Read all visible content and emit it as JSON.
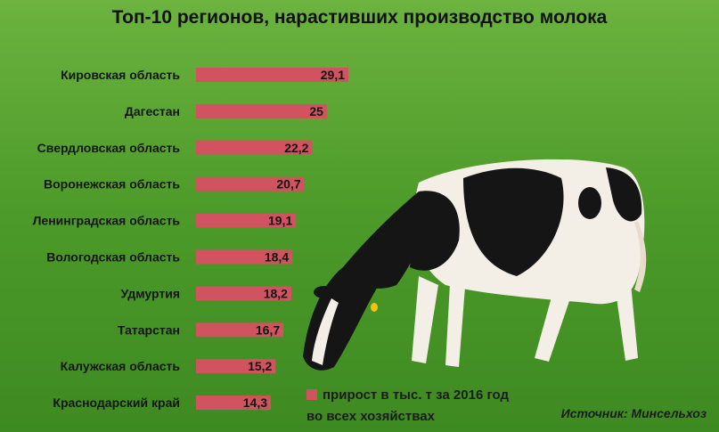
{
  "chart_data": {
    "type": "bar",
    "orientation": "horizontal",
    "title": "Топ-10 регионов, нарастивших производство молока",
    "categories": [
      "Кировская область",
      "Дагестан",
      "Свердловская область",
      "Воронежская область",
      "Ленинградская область",
      "Вологодская область",
      "Удмуртия",
      "Татарстан",
      "Калужская область",
      "Краснодарский край"
    ],
    "series": [
      {
        "name": "прирост в тыс. т за 2016 год во всех хозяйствах",
        "values": [
          29.1,
          25,
          22.2,
          20.7,
          19.1,
          18.4,
          18.2,
          16.7,
          15.2,
          14.3
        ],
        "value_labels": [
          "29,1",
          "25",
          "22,2",
          "20,7",
          "19,1",
          "18,4",
          "18,2",
          "16,7",
          "15,2",
          "14,3"
        ]
      }
    ],
    "xlim": [
      0,
      29.1
    ],
    "grid": false,
    "legend_position": "bottom",
    "bar_color": "#d0535f"
  },
  "legend": {
    "line1": "прирост в тыс. т за 2016 год",
    "line2": "во всех хозяйствах"
  },
  "source": "Источник:  Минсельхоз"
}
